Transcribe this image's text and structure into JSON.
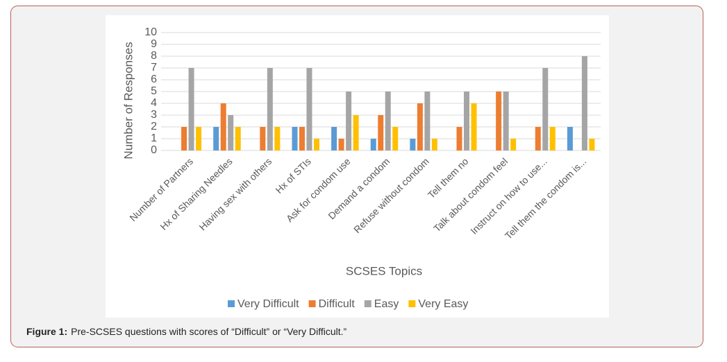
{
  "chart_data": {
    "type": "bar",
    "y_label": "Number of Responses",
    "x_label": "SCSES Topics",
    "categories": [
      "Number of Partners",
      "Hx of Sharing Needles",
      "Having sex with others",
      "Hx of STIs",
      "Ask for condom use",
      "Demand a condom",
      "Refuse without condom",
      "Tell them no",
      "Talk about condom feel",
      "Instruct on how to use...",
      "Tell them the condom is..."
    ],
    "series": [
      {
        "name": "Very Difficult",
        "color": "#5b9bd5",
        "values": [
          0,
          2,
          0,
          2,
          2,
          1,
          1,
          0,
          0,
          0,
          2
        ]
      },
      {
        "name": "Difficult",
        "color": "#ed7d31",
        "values": [
          2,
          4,
          2,
          2,
          1,
          3,
          4,
          2,
          5,
          2,
          0
        ]
      },
      {
        "name": "Easy",
        "color": "#a5a5a5",
        "values": [
          7,
          3,
          7,
          7,
          5,
          5,
          5,
          5,
          5,
          7,
          8
        ]
      },
      {
        "name": "Very Easy",
        "color": "#ffc000",
        "values": [
          2,
          2,
          2,
          1,
          3,
          2,
          1,
          4,
          1,
          2,
          1
        ]
      }
    ],
    "ylim": [
      0,
      10
    ],
    "yticks": [
      0,
      1,
      2,
      3,
      4,
      5,
      6,
      7,
      8,
      9,
      10
    ],
    "grid": true,
    "legend": "bottom"
  },
  "caption": {
    "label": "Figure 1:",
    "text": "Pre-SCSES questions with scores of “Difficult” or “Very Difficult.”"
  }
}
